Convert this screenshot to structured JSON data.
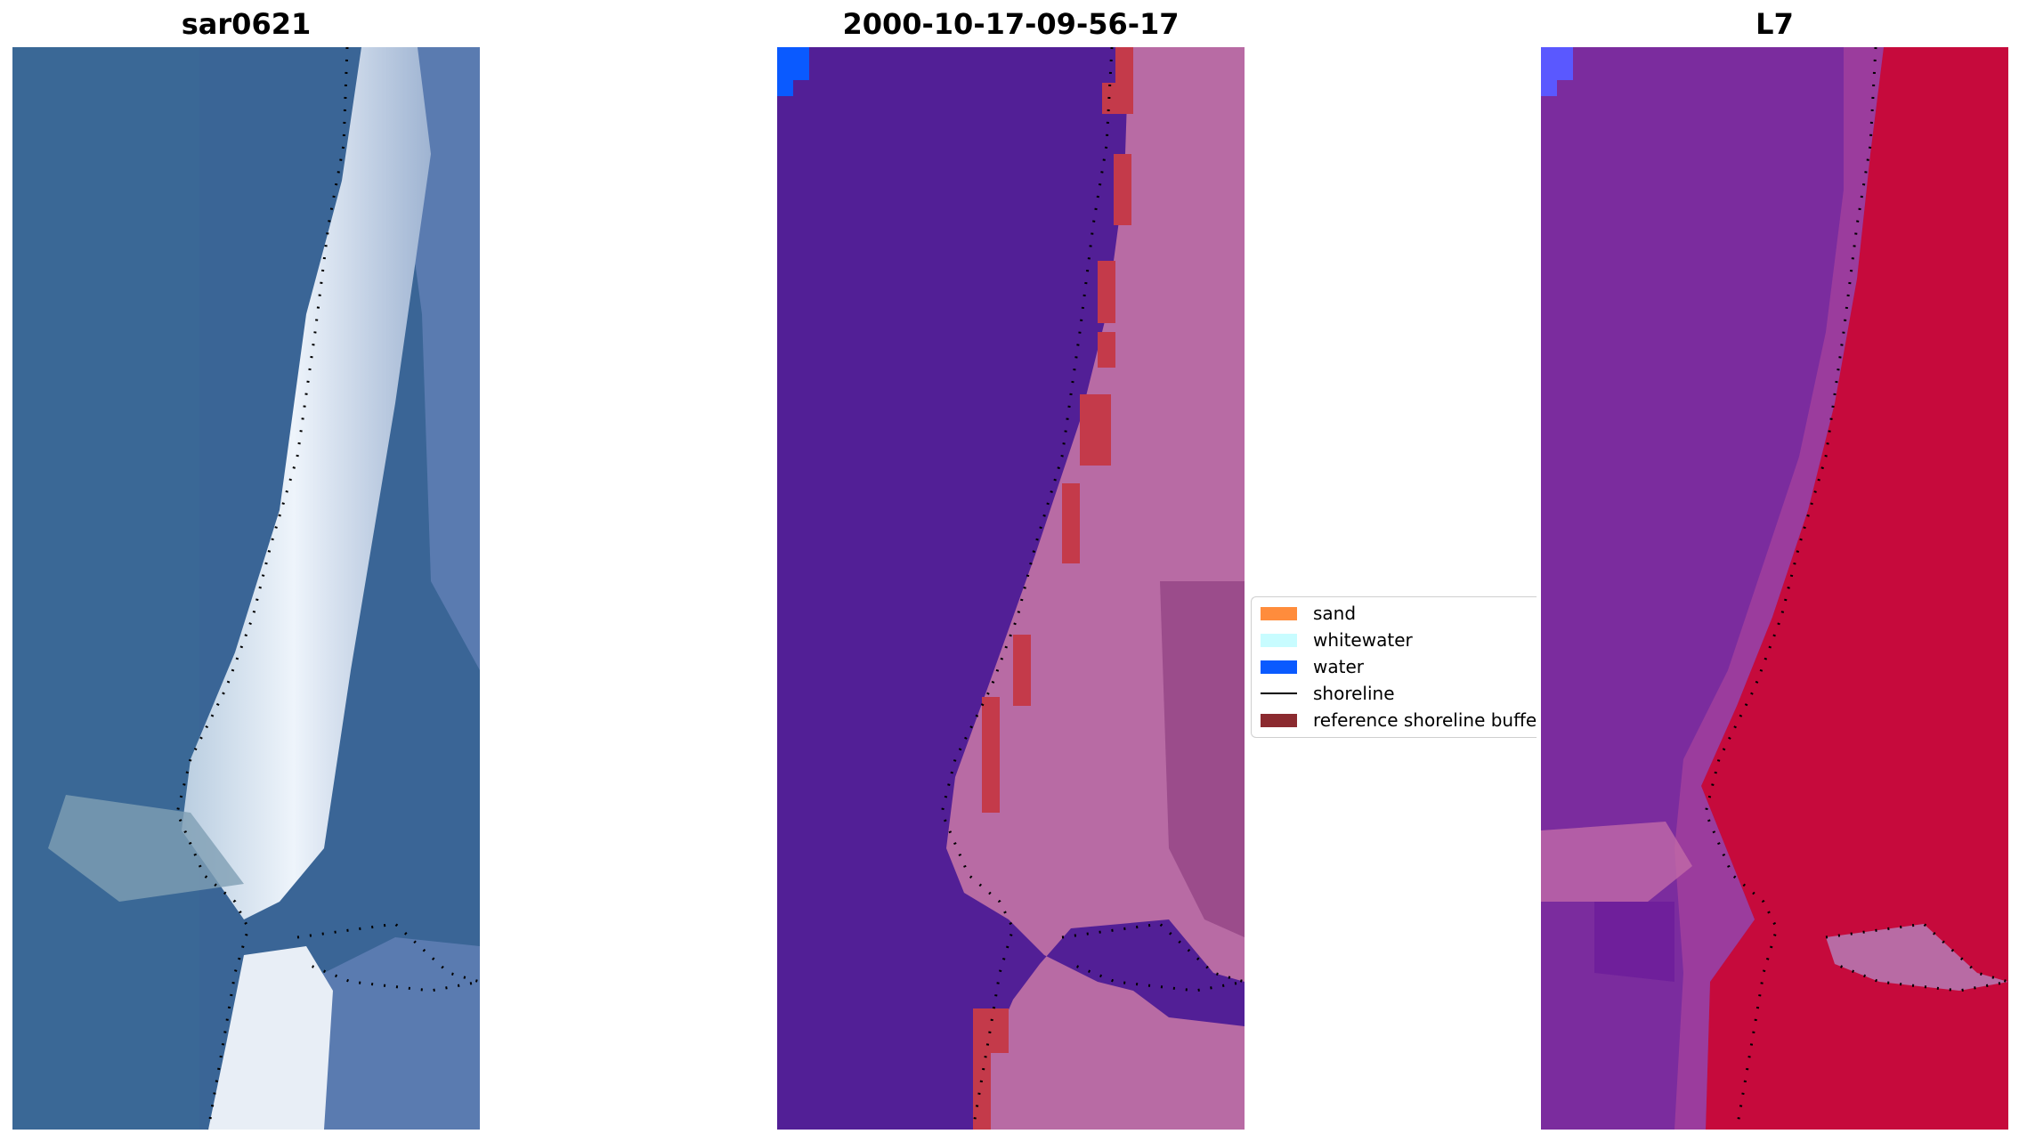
{
  "panels": [
    {
      "title": "sar0621"
    },
    {
      "title": "2000-10-17-09-56-17"
    },
    {
      "title": "L7"
    }
  ],
  "legend": {
    "items": [
      {
        "label": "sand",
        "color": "#ff8c3c"
      },
      {
        "label": "whitewater",
        "color": "#c8fcff"
      },
      {
        "label": "water",
        "color": "#0a5aff"
      },
      {
        "label": "shoreline",
        "color": "#000000"
      },
      {
        "label": "reference shoreline buffer",
        "color": "#8b2a2f"
      }
    ]
  },
  "colors": {
    "rgb_water": "#3a6596",
    "rgb_surf": "#e4ecf5",
    "class_water_bg": "#521f96",
    "class_land": "#b86ba4",
    "class_buffer": "#c43a4a",
    "ndwi_purple": "#7b2c9e",
    "ndwi_red": "#c60a3c"
  }
}
